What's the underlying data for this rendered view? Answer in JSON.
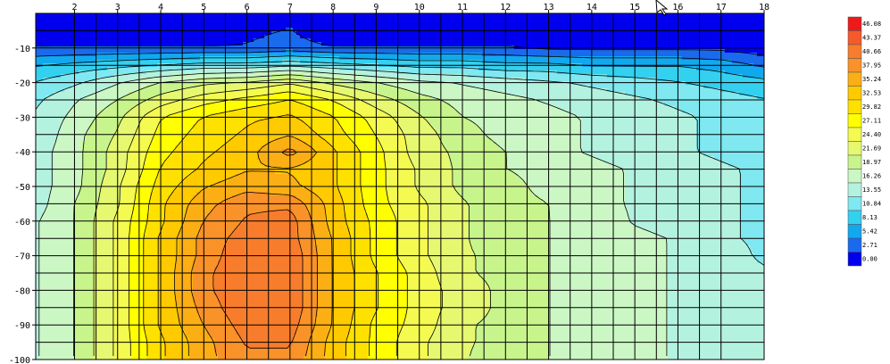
{
  "chart_data": {
    "type": "heatmap",
    "subtype": "filled-contour",
    "x_ticks": [
      "2",
      "3",
      "4",
      "5",
      "6",
      "7",
      "8",
      "9",
      "10",
      "11",
      "12",
      "13",
      "14",
      "15",
      "16",
      "17",
      "18"
    ],
    "y_ticks": [
      "-10",
      "-20",
      "-30",
      "-40",
      "-50",
      "-60",
      "-70",
      "-80",
      "-90",
      "-100"
    ],
    "xlim": [
      1.1,
      18
    ],
    "ylim": [
      -100,
      0
    ],
    "grid": true,
    "legend_position": "right",
    "colorbar_levels": [
      "0.00",
      "2.71",
      "5.42",
      "8.13",
      "10.84",
      "13.55",
      "16.26",
      "18.97",
      "21.69",
      "24.40",
      "27.11",
      "29.82",
      "32.53",
      "35.24",
      "37.95",
      "40.66",
      "43.37",
      "46.08"
    ],
    "colorbar_colors": [
      "#0000ee",
      "#1a6aee",
      "#12a8ee",
      "#33d0f0",
      "#7fe8f0",
      "#b4f2e0",
      "#cbf7c4",
      "#c8f48c",
      "#e6f870",
      "#f4fa50",
      "#ffff00",
      "#ffe100",
      "#ffca00",
      "#fbaf14",
      "#f99228",
      "#f77d2c",
      "#f55a2a",
      "#ee1a1a"
    ],
    "y_depths": [
      0,
      -5,
      -10,
      -15,
      -20,
      -25,
      -30,
      -35,
      -40,
      -45,
      -50,
      -55,
      -60,
      -65,
      -70,
      -75,
      -80,
      -85,
      -90,
      -95,
      -100
    ],
    "x_positions": [
      1.1,
      2,
      3,
      4,
      5,
      6,
      7,
      8,
      9,
      10,
      11,
      12,
      13,
      14,
      15,
      16,
      17,
      18
    ],
    "values": [
      [
        0,
        0,
        0,
        0,
        0,
        0,
        0,
        0,
        0,
        0,
        0,
        0,
        0,
        0,
        0,
        0,
        0,
        0
      ],
      [
        0,
        0,
        0,
        0,
        0,
        2,
        3,
        0,
        0,
        0,
        0,
        0,
        0,
        0,
        0,
        0,
        0,
        0
      ],
      [
        3,
        3,
        3,
        3,
        3,
        3,
        4,
        3,
        3,
        3,
        3,
        3,
        2,
        2,
        2,
        2,
        2,
        1
      ],
      [
        8,
        9,
        10,
        11,
        12,
        12,
        13,
        12,
        11,
        10,
        10,
        9,
        9,
        8,
        8,
        8,
        7,
        5
      ],
      [
        11,
        13,
        16,
        19,
        21,
        22,
        24,
        21,
        19,
        17,
        16,
        15,
        14,
        13,
        12,
        11,
        10,
        9
      ],
      [
        13,
        16,
        19,
        23,
        26,
        28,
        30,
        27,
        23,
        20,
        18,
        17,
        16,
        15,
        14,
        13,
        12,
        11
      ],
      [
        14,
        17,
        21,
        27,
        30,
        32,
        33,
        30,
        26,
        22,
        19,
        18,
        17,
        16,
        15,
        14,
        13,
        12
      ],
      [
        14,
        18,
        22,
        28,
        31,
        33,
        35,
        31,
        27,
        23,
        20,
        18,
        17,
        16,
        15,
        14,
        13,
        12
      ],
      [
        15,
        18,
        23,
        29,
        32,
        34,
        39,
        33,
        28,
        23,
        21,
        19,
        17,
        16,
        15,
        14,
        13,
        12
      ],
      [
        15,
        18,
        23,
        30,
        33,
        35,
        35,
        33,
        28,
        24,
        21,
        19,
        18,
        17,
        16,
        15,
        14,
        13
      ],
      [
        15,
        18,
        24,
        31,
        35,
        37,
        36,
        33,
        28,
        24,
        21,
        20,
        18,
        17,
        16,
        15,
        14,
        13
      ],
      [
        15,
        19,
        24,
        32,
        37,
        40,
        40,
        34,
        28,
        25,
        22,
        20,
        19,
        17,
        16,
        15,
        14,
        13
      ],
      [
        16,
        19,
        25,
        32,
        38,
        41,
        42,
        34,
        29,
        25,
        22,
        20,
        19,
        18,
        16,
        15,
        14,
        13
      ],
      [
        16,
        19,
        25,
        33,
        39,
        42,
        42,
        35,
        29,
        25,
        22,
        20,
        19,
        18,
        17,
        16,
        14,
        13
      ],
      [
        16,
        19,
        25,
        33,
        39,
        43,
        43,
        35,
        29,
        25,
        22,
        21,
        19,
        18,
        17,
        16,
        15,
        13
      ],
      [
        16,
        19,
        25,
        33,
        40,
        43,
        43,
        35,
        30,
        26,
        22,
        21,
        19,
        18,
        17,
        16,
        15,
        14
      ],
      [
        16,
        19,
        25,
        33,
        40,
        43,
        43,
        35,
        30,
        26,
        23,
        21,
        19,
        18,
        17,
        16,
        15,
        14
      ],
      [
        16,
        19,
        25,
        33,
        39,
        43,
        43,
        35,
        30,
        26,
        23,
        21,
        19,
        18,
        17,
        16,
        15,
        14
      ],
      [
        16,
        19,
        25,
        33,
        38,
        42,
        42,
        35,
        29,
        26,
        22,
        21,
        19,
        18,
        17,
        16,
        15,
        14
      ],
      [
        16,
        19,
        25,
        32,
        37,
        41,
        41,
        34,
        29,
        25,
        22,
        21,
        19,
        18,
        17,
        16,
        15,
        14
      ],
      [
        16,
        19,
        25,
        32,
        37,
        40,
        40,
        34,
        29,
        25,
        22,
        20,
        19,
        18,
        17,
        16,
        15,
        14
      ]
    ]
  }
}
